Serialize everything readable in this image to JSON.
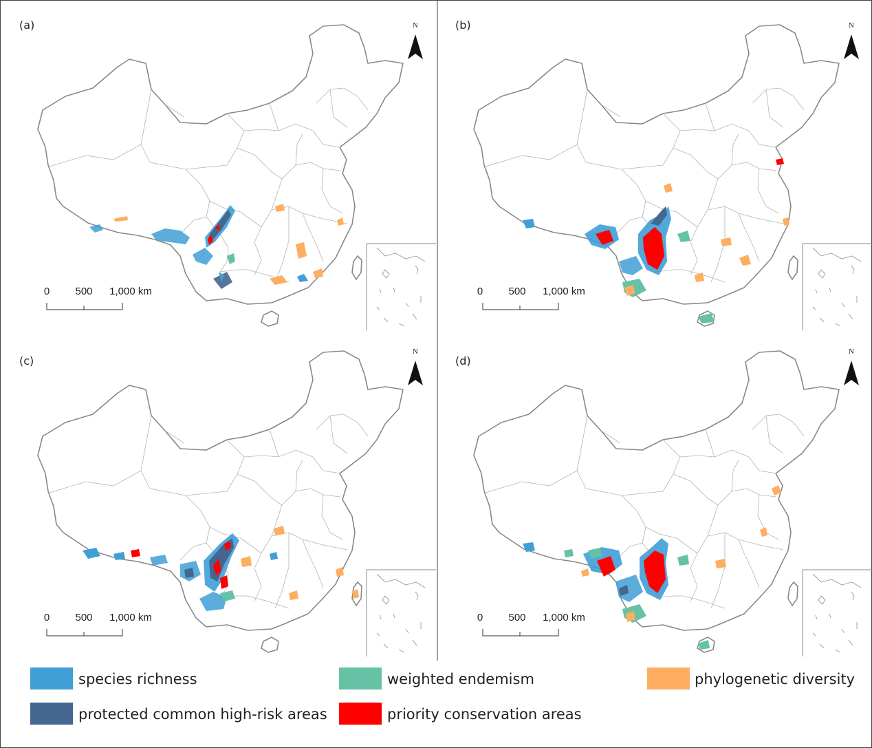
{
  "panels": [
    {
      "label": "(a)",
      "north": "N",
      "scale": [
        "0",
        "500",
        "1,000 km"
      ]
    },
    {
      "label": "(b)",
      "north": "N",
      "scale": [
        "0",
        "500",
        "1,000 km"
      ]
    },
    {
      "label": "(c)",
      "north": "N",
      "scale": [
        "0",
        "500",
        "1,000 km"
      ]
    },
    {
      "label": "(d)",
      "north": "N",
      "scale": [
        "0",
        "500",
        "1,000 km"
      ]
    }
  ],
  "legend": [
    {
      "label": "species richness",
      "color": "#3f9fd6"
    },
    {
      "label": "weighted endemism",
      "color": "#66c2a5"
    },
    {
      "label": "phylogenetic diversity",
      "color": "#fdae61"
    },
    {
      "label": "protected common high-risk areas",
      "color": "#45668e"
    },
    {
      "label": "priority conservation areas",
      "color": "#ff0000"
    }
  ]
}
